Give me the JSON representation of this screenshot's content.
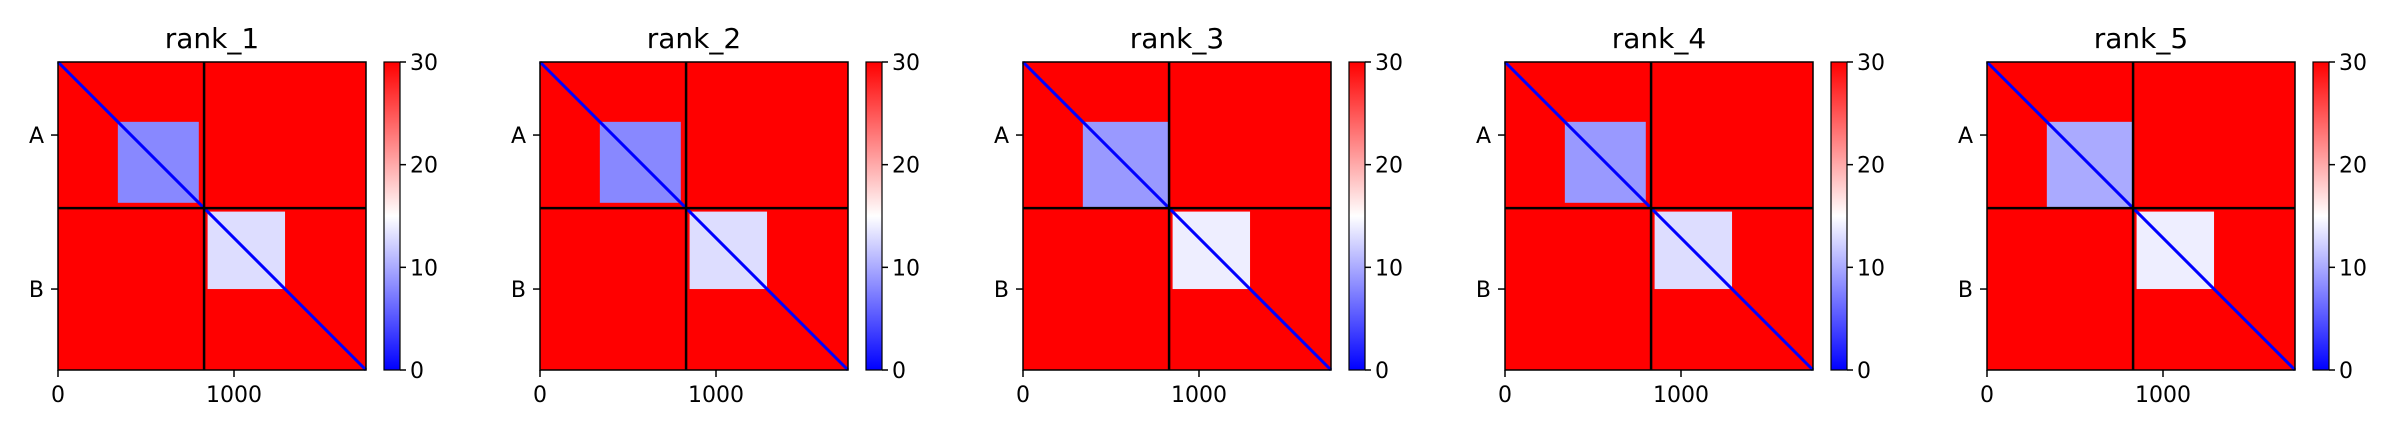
{
  "chart_data": {
    "type": "heatmap",
    "colormap": {
      "low": "#0000ff",
      "mid": "#ffffff",
      "high": "#ff0000",
      "range": [
        0,
        30
      ]
    },
    "colorbar_ticks": [
      "0",
      "10",
      "20",
      "30"
    ],
    "x_ticks": [
      {
        "value": 0,
        "label": "0"
      },
      {
        "value": 1000,
        "label": "1000"
      }
    ],
    "x_range": [
      0,
      1750
    ],
    "chain_boundary": 830,
    "chain_labels": [
      "A",
      "B"
    ],
    "panels": [
      {
        "title": "rank_1",
        "chain_a_block": {
          "range": [
            340,
            800
          ],
          "value": 8
        },
        "chain_b_block": {
          "range": [
            850,
            1290
          ],
          "value": 13
        }
      },
      {
        "title": "rank_2",
        "chain_a_block": {
          "range": [
            340,
            800
          ],
          "value": 8
        },
        "chain_b_block": {
          "range": [
            850,
            1290
          ],
          "value": 13
        }
      },
      {
        "title": "rank_3",
        "chain_a_block": {
          "range": [
            340,
            830
          ],
          "value": 9
        },
        "chain_b_block": {
          "range": [
            850,
            1290
          ],
          "value": 14
        }
      },
      {
        "title": "rank_4",
        "chain_a_block": {
          "range": [
            340,
            800
          ],
          "value": 9
        },
        "chain_b_block": {
          "range": [
            850,
            1290
          ],
          "value": 13
        }
      },
      {
        "title": "rank_5",
        "chain_a_block": {
          "range": [
            340,
            830
          ],
          "value": 10
        },
        "chain_b_block": {
          "range": [
            850,
            1290
          ],
          "value": 14
        }
      }
    ]
  }
}
